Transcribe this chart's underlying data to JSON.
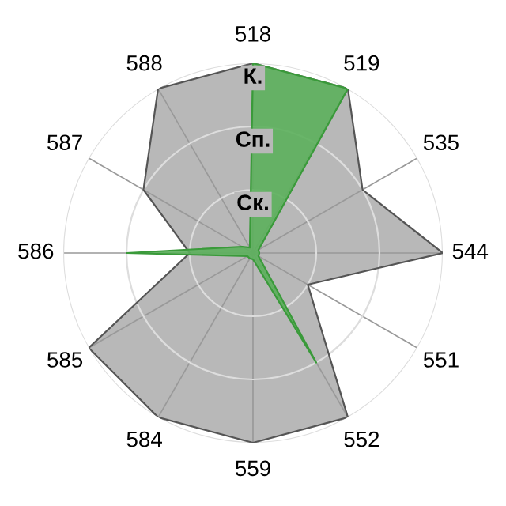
{
  "chart_data": {
    "type": "radar",
    "categories": [
      "518",
      "519",
      "535",
      "544",
      "551",
      "552",
      "559",
      "584",
      "585",
      "586",
      "587",
      "588"
    ],
    "series": [
      {
        "color": "#b8b8b8",
        "values": [
          3.0,
          3.0,
          2.0,
          3.0,
          1.0,
          3.0,
          3.0,
          3.0,
          3.0,
          1.0,
          2.0,
          3.0
        ]
      },
      {
        "color": "#5cb05c",
        "values": [
          3.0,
          3.0,
          0.1,
          0.1,
          0.1,
          2.0,
          0.1,
          0.1,
          0.1,
          2.0,
          0.2,
          0.1
        ]
      }
    ],
    "ylim": [
      0,
      3
    ],
    "yticks": [
      {
        "value": 1,
        "label": "Ск."
      },
      {
        "value": 2,
        "label": "Сп."
      },
      {
        "value": 3,
        "label": "К."
      }
    ],
    "grid": true,
    "legend": false
  }
}
